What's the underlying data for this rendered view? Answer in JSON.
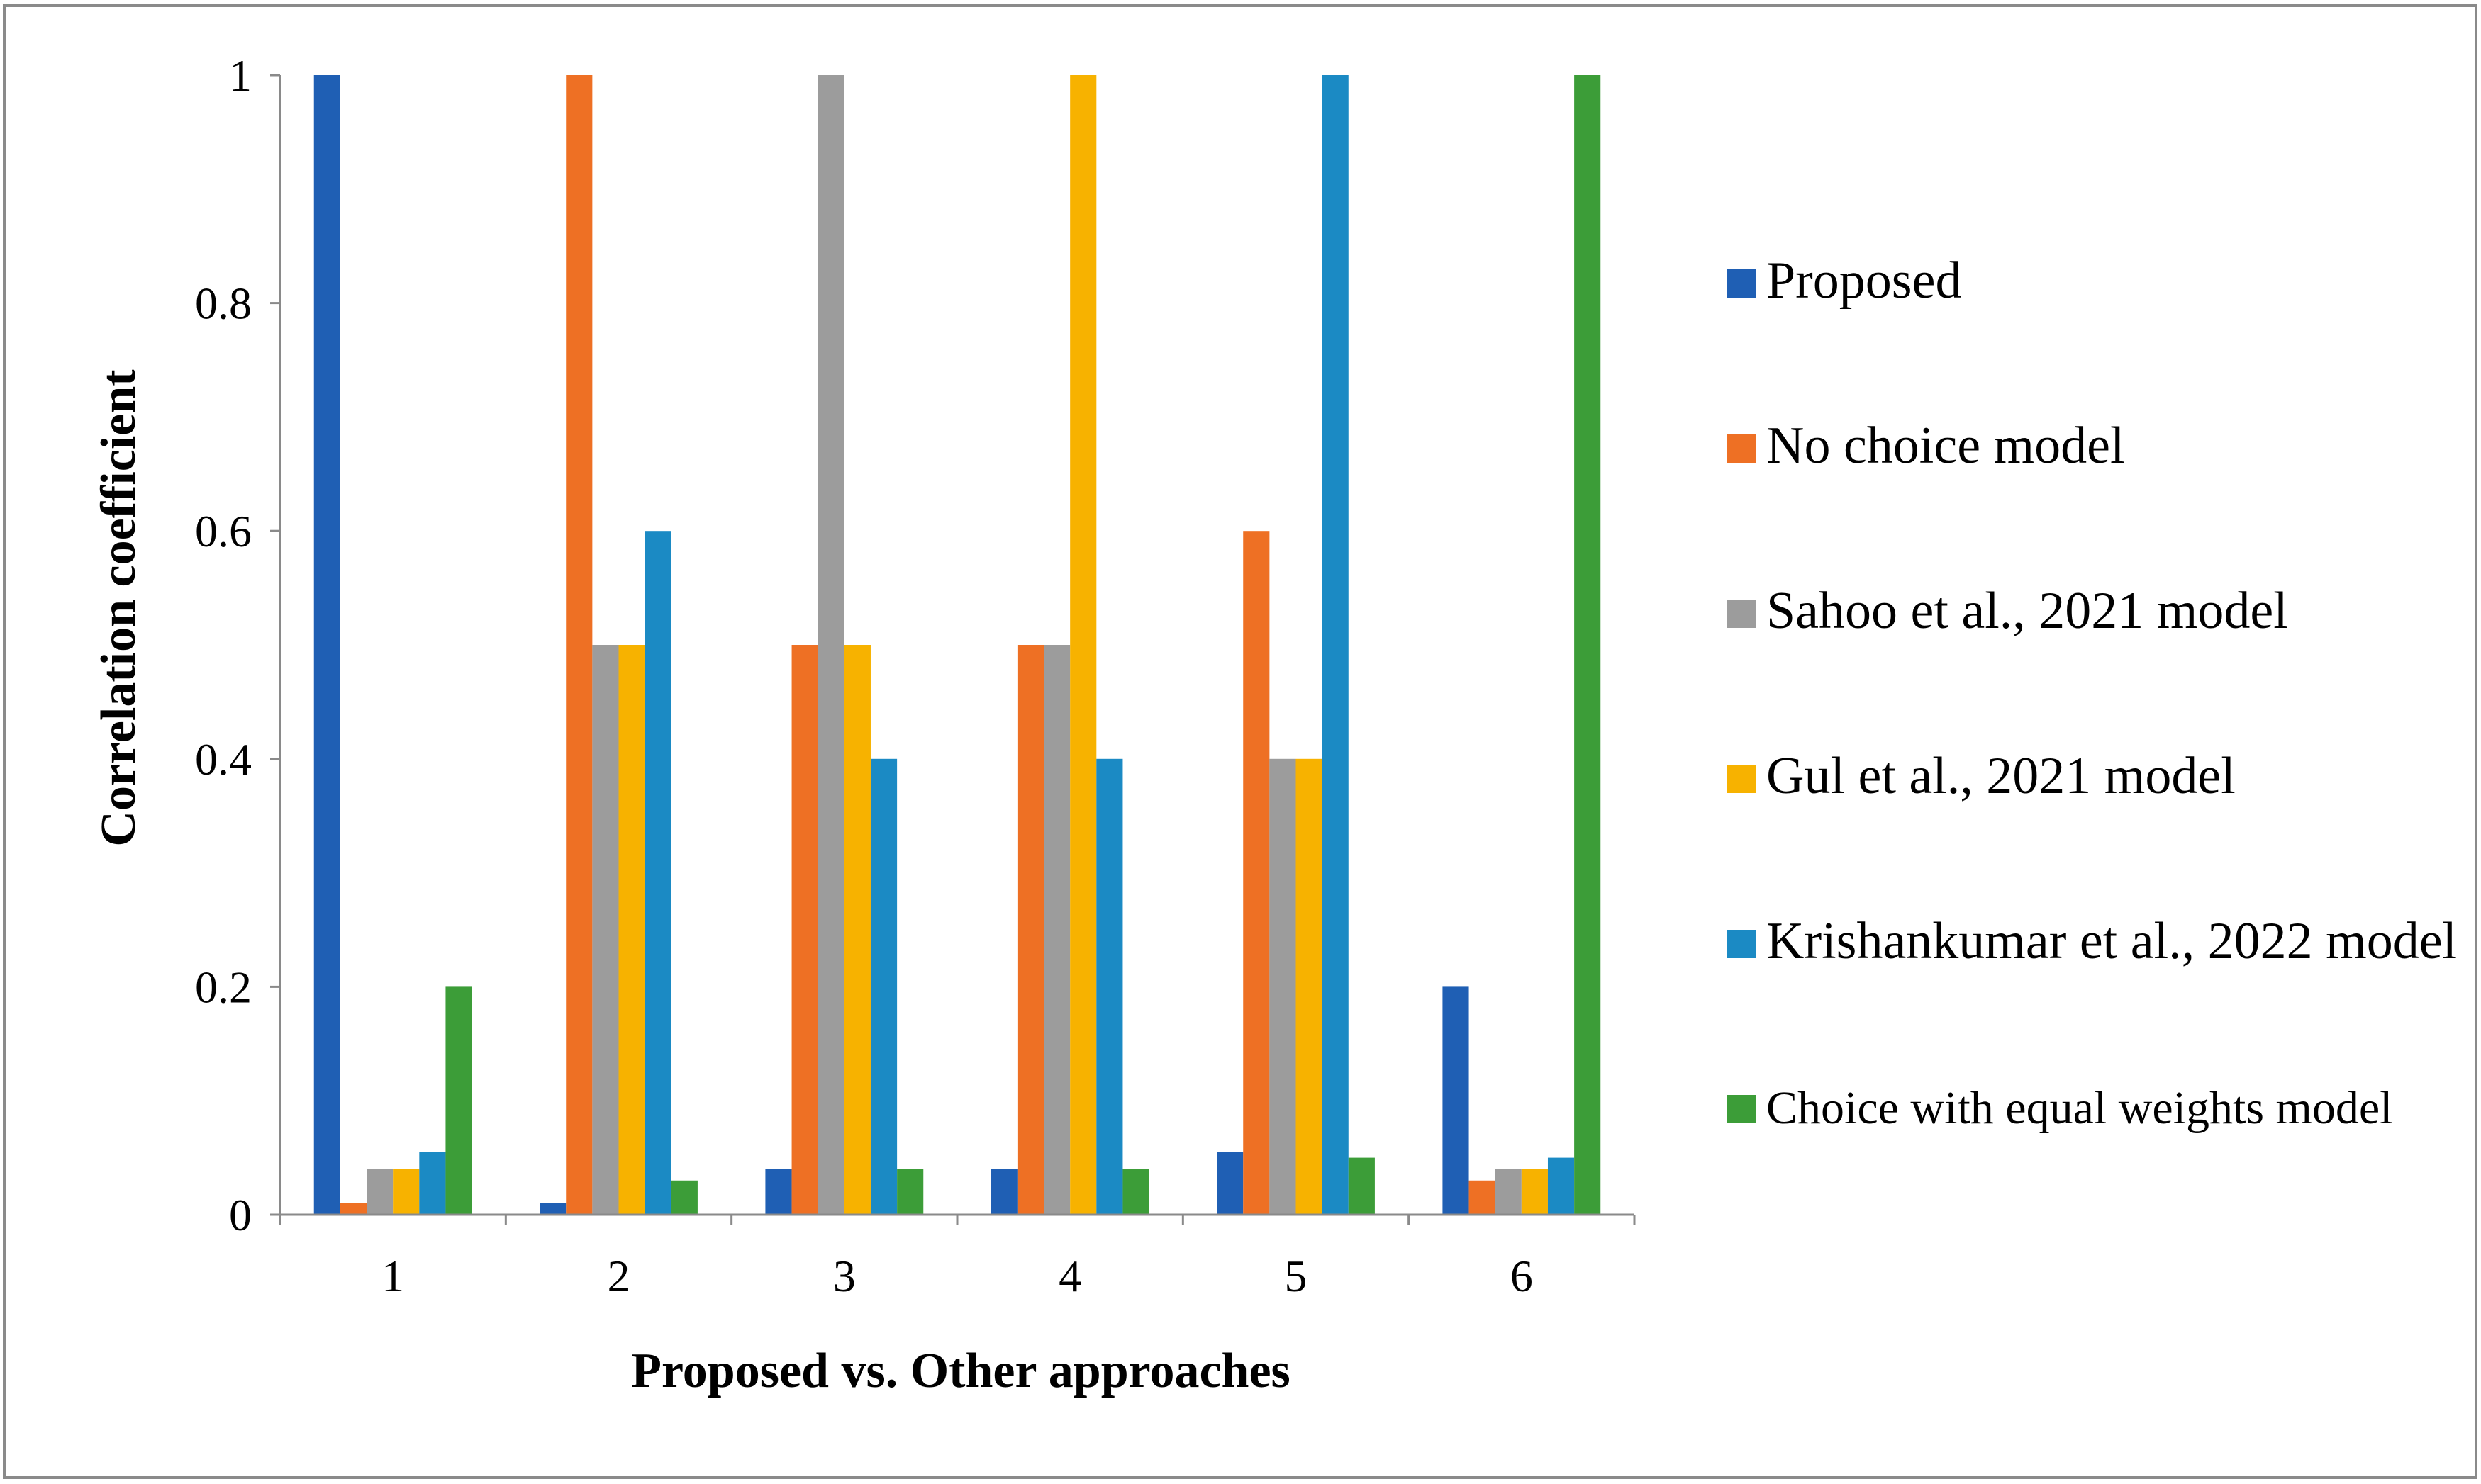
{
  "chart_data": {
    "type": "bar",
    "title": "",
    "xlabel": "Proposed vs. Other approaches",
    "ylabel": "Correlation coefficient",
    "ylim": [
      0,
      1
    ],
    "yticks": [
      "0",
      "0.2",
      "0.4",
      "0.6",
      "0.8",
      "1"
    ],
    "categories": [
      "1",
      "2",
      "3",
      "4",
      "5",
      "6"
    ],
    "grid": false,
    "legend_position": "right",
    "series": [
      {
        "name": "Proposed",
        "color": "#1f5fb4",
        "values": [
          1.0,
          0.01,
          0.04,
          0.04,
          0.055,
          0.2
        ]
      },
      {
        "name": "No choice model",
        "color": "#ee7024",
        "values": [
          0.01,
          1.0,
          0.5,
          0.5,
          0.6,
          0.03
        ]
      },
      {
        "name": "Sahoo et al., 2021 model",
        "color": "#9c9c9c",
        "values": [
          0.04,
          0.5,
          1.0,
          0.5,
          0.4,
          0.04
        ]
      },
      {
        "name": "Gul et al., 2021 model",
        "color": "#f7b200",
        "values": [
          0.04,
          0.5,
          0.5,
          1.0,
          0.4,
          0.04
        ]
      },
      {
        "name": "Krishankumar et al., 2022 model",
        "color": "#1b8ac4",
        "values": [
          0.055,
          0.6,
          0.4,
          0.4,
          1.0,
          0.05
        ]
      },
      {
        "name": "Choice with equal weights model",
        "color": "#3c9d38",
        "values": [
          0.2,
          0.03,
          0.04,
          0.04,
          0.05,
          1.0
        ]
      }
    ]
  }
}
